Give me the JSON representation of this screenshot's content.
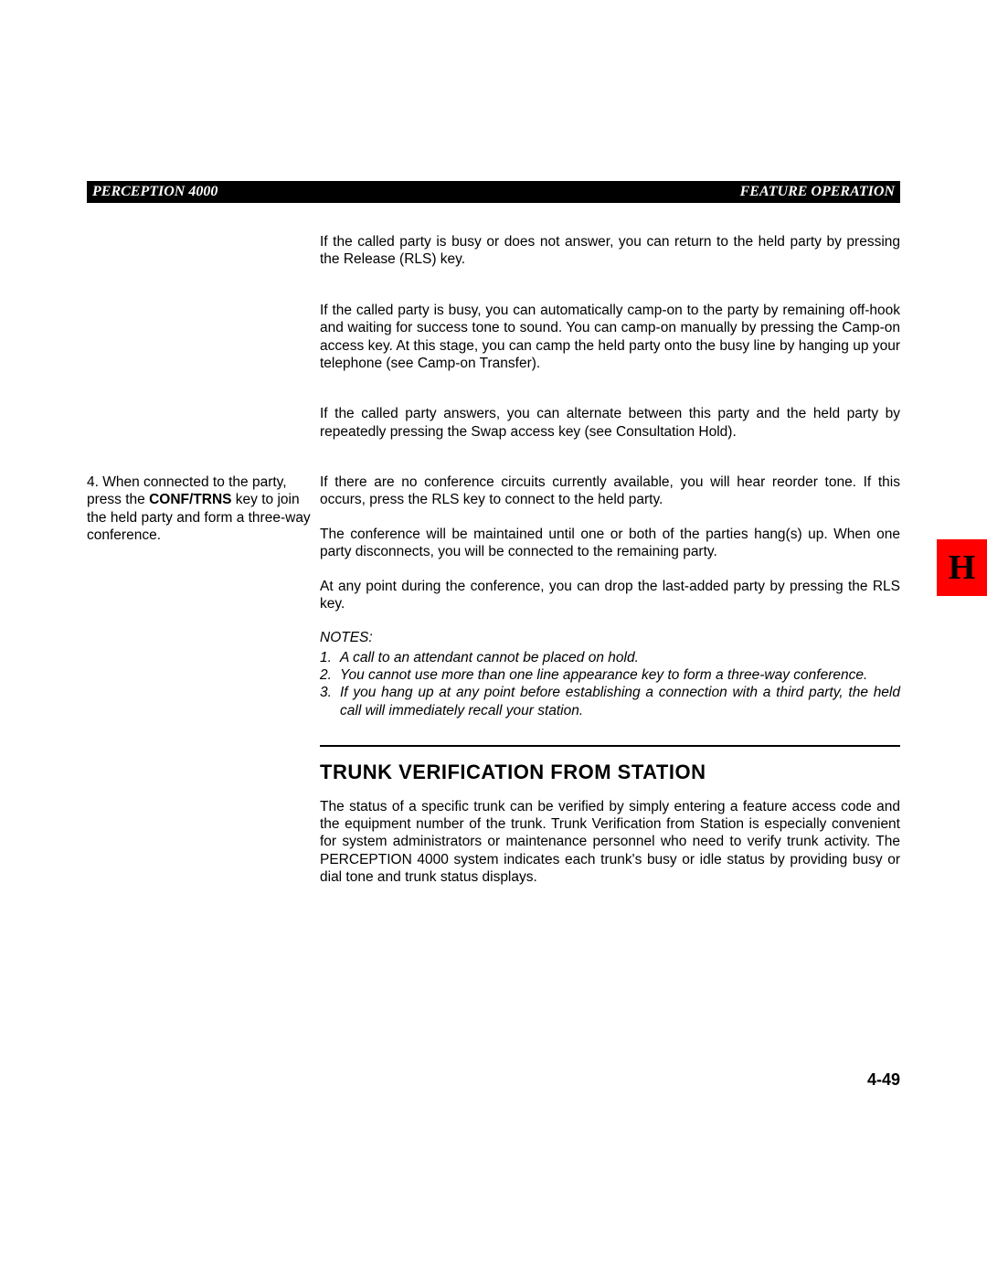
{
  "header": {
    "left": "PERCEPTION 4000",
    "right": "FEATURE OPERATION"
  },
  "paragraphs": {
    "p1": "If the called party is busy or does not answer, you can return to the held party by pressing the Release (RLS) key.",
    "p2": "If the called party is busy, you can automatically camp-on to the party by remaining off-hook and waiting for success tone to sound. You can camp-on manually by pressing the Camp-on access key. At this stage, you can camp the held party onto the busy line by hanging up your telephone (see Camp-on Transfer).",
    "p3": "If the called party answers, you can alternate between this party and the held party by repeatedly pressing the Swap access key (see Consultation Hold).",
    "p4": "If there are no conference circuits currently available, you will hear reorder tone. If this occurs, press the RLS key to connect to the held party.",
    "p5": "The conference will be maintained until one or both of the parties hang(s) up. When one party disconnects, you will be connected to the remaining party.",
    "p6": "At any point during the conference, you can drop the last-added party by pressing the RLS key."
  },
  "step4": {
    "num": "4.",
    "pre": "When connected to the party, press the ",
    "bold": "CONF/TRNS",
    "post": " key to join the held party and form a three-way conference."
  },
  "notes": {
    "title": "NOTES:",
    "items": [
      {
        "num": "1.",
        "text": "A call to an attendant cannot be placed on hold."
      },
      {
        "num": "2.",
        "text": "You cannot use more than one line appearance key to form a three-way conference."
      },
      {
        "num": "3.",
        "text": "If you hang up at any point before establishing a connection with a third party, the held call will immediately recall your station."
      }
    ]
  },
  "section": {
    "title": "TRUNK VERIFICATION FROM STATION",
    "body": "The status of a specific trunk can be verified by simply entering a feature access code and the equipment number of the trunk. Trunk Verification from Station is especially convenient for system administrators or maintenance personnel who need to verify trunk activity. The PERCEPTION 4000 system indicates each trunk's busy or idle status by providing busy or dial tone and trunk status displays."
  },
  "footer": {
    "page": "4-49"
  },
  "sidetab": {
    "letter": "H",
    "bg": "#ff0000"
  }
}
